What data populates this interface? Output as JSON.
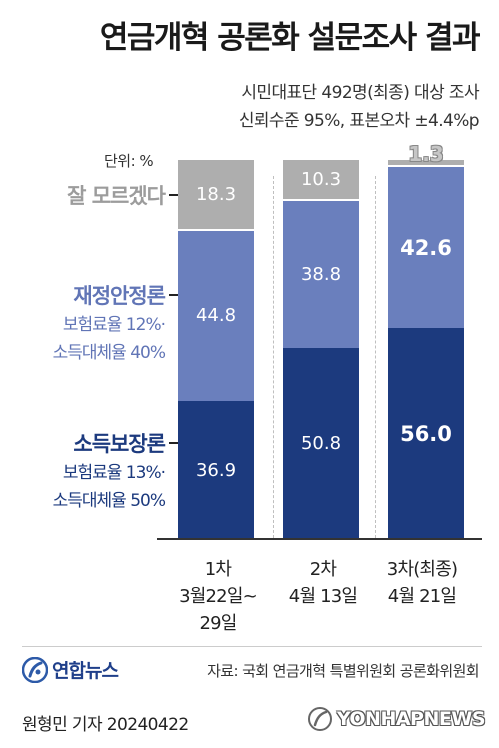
{
  "header": {
    "title": "연금개혁 공론화 설문조사 결과",
    "subtitle1": "시민대표단 492명(최종) 대상 조사",
    "subtitle2": "신뢰수준 95%, 표본오차 ±4.4%p"
  },
  "colors": {
    "dont_know": "#aeaeae",
    "fiscal": "#6a7fbd",
    "income": "#1c3a7e",
    "label_gray": "#9c9c9c",
    "label_fiscal": "#6175b6",
    "label_income": "#1c3a7e"
  },
  "chart_data": {
    "type": "bar",
    "stacked": true,
    "unit_label": "단위: %",
    "categories": [
      {
        "line1": "1차",
        "line2": "3월22일~",
        "line3": "29일"
      },
      {
        "line1": "2차",
        "line2": "4월 13일",
        "line3": ""
      },
      {
        "line1": "3차(최종)",
        "line2": "4월 21일",
        "line3": ""
      }
    ],
    "series": [
      {
        "key": "income",
        "name": "소득보장론",
        "detail1": "보험료율 13%·",
        "detail2": "소득대체율 50%",
        "values": [
          36.9,
          50.8,
          56.0
        ],
        "labels": [
          "36.9",
          "50.8",
          "56.0"
        ]
      },
      {
        "key": "fiscal",
        "name": "재정안정론",
        "detail1": "보험료율 12%·",
        "detail2": "소득대체율 40%",
        "values": [
          44.8,
          38.8,
          42.6
        ],
        "labels": [
          "44.8",
          "38.8",
          "42.6"
        ]
      },
      {
        "key": "dont_know",
        "name": "잘 모르겠다",
        "detail1": "",
        "detail2": "",
        "values": [
          18.3,
          10.3,
          1.3
        ],
        "labels": [
          "18.3",
          "10.3",
          "1.3"
        ]
      }
    ],
    "ylim": [
      0,
      100
    ]
  },
  "footer": {
    "logo_text": "연합뉴스",
    "source": "자료: 국회 연금개혁 특별위원회 공론화위원회",
    "reporter": "원형민 기자  20240422",
    "watermark": "YONHAPNEWS"
  }
}
